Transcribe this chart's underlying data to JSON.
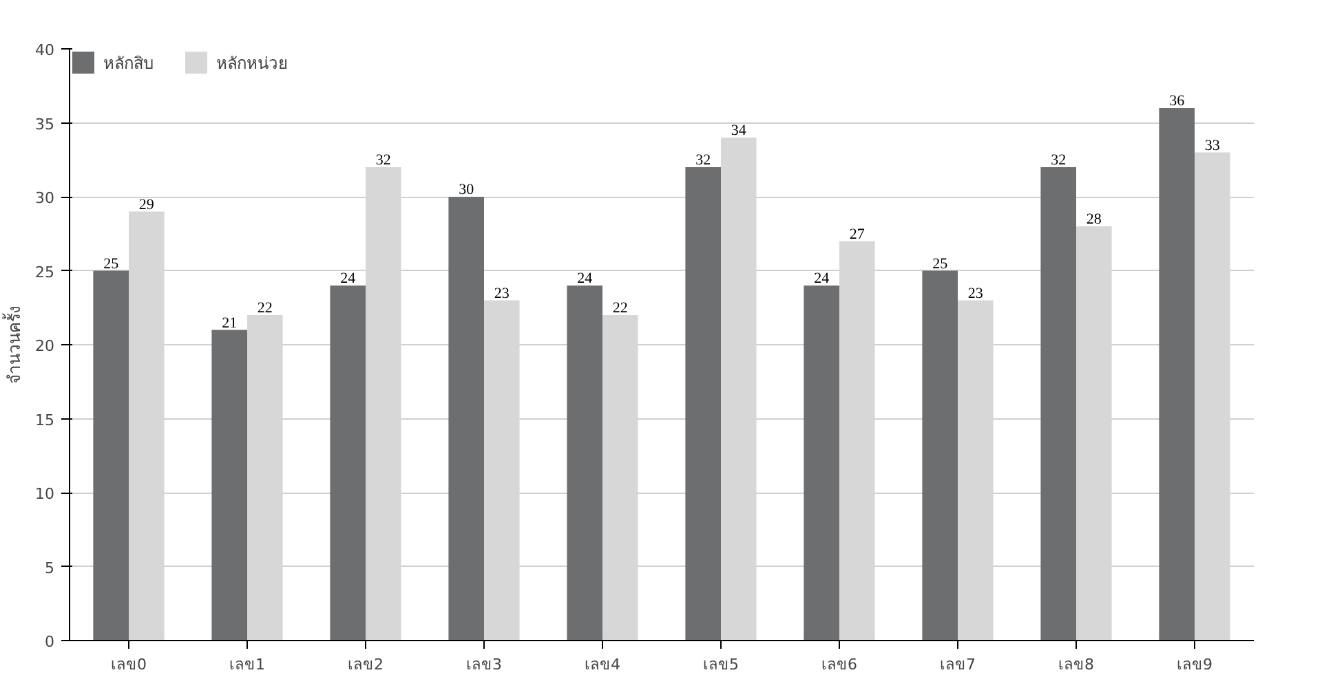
{
  "chart_data": {
    "type": "bar",
    "ylabel": "จำนวนครั้ง",
    "categories": [
      "เลข0",
      "เลข1",
      "เลข2",
      "เลข3",
      "เลข4",
      "เลข5",
      "เลข6",
      "เลข7",
      "เลข8",
      "เลข9"
    ],
    "series": [
      {
        "name": "หลักสิบ",
        "color": "#6d6e70",
        "values": [
          25,
          21,
          24,
          30,
          24,
          32,
          24,
          25,
          32,
          36
        ]
      },
      {
        "name": "หลักหน่วย",
        "color": "#d7d7d7",
        "values": [
          29,
          22,
          32,
          23,
          22,
          34,
          27,
          23,
          28,
          33
        ]
      }
    ],
    "ylim": [
      0,
      40
    ],
    "yticks": [
      0,
      5,
      10,
      15,
      20,
      25,
      30,
      35,
      40
    ],
    "grid": "y",
    "legend": "top left",
    "data_labels": true
  }
}
